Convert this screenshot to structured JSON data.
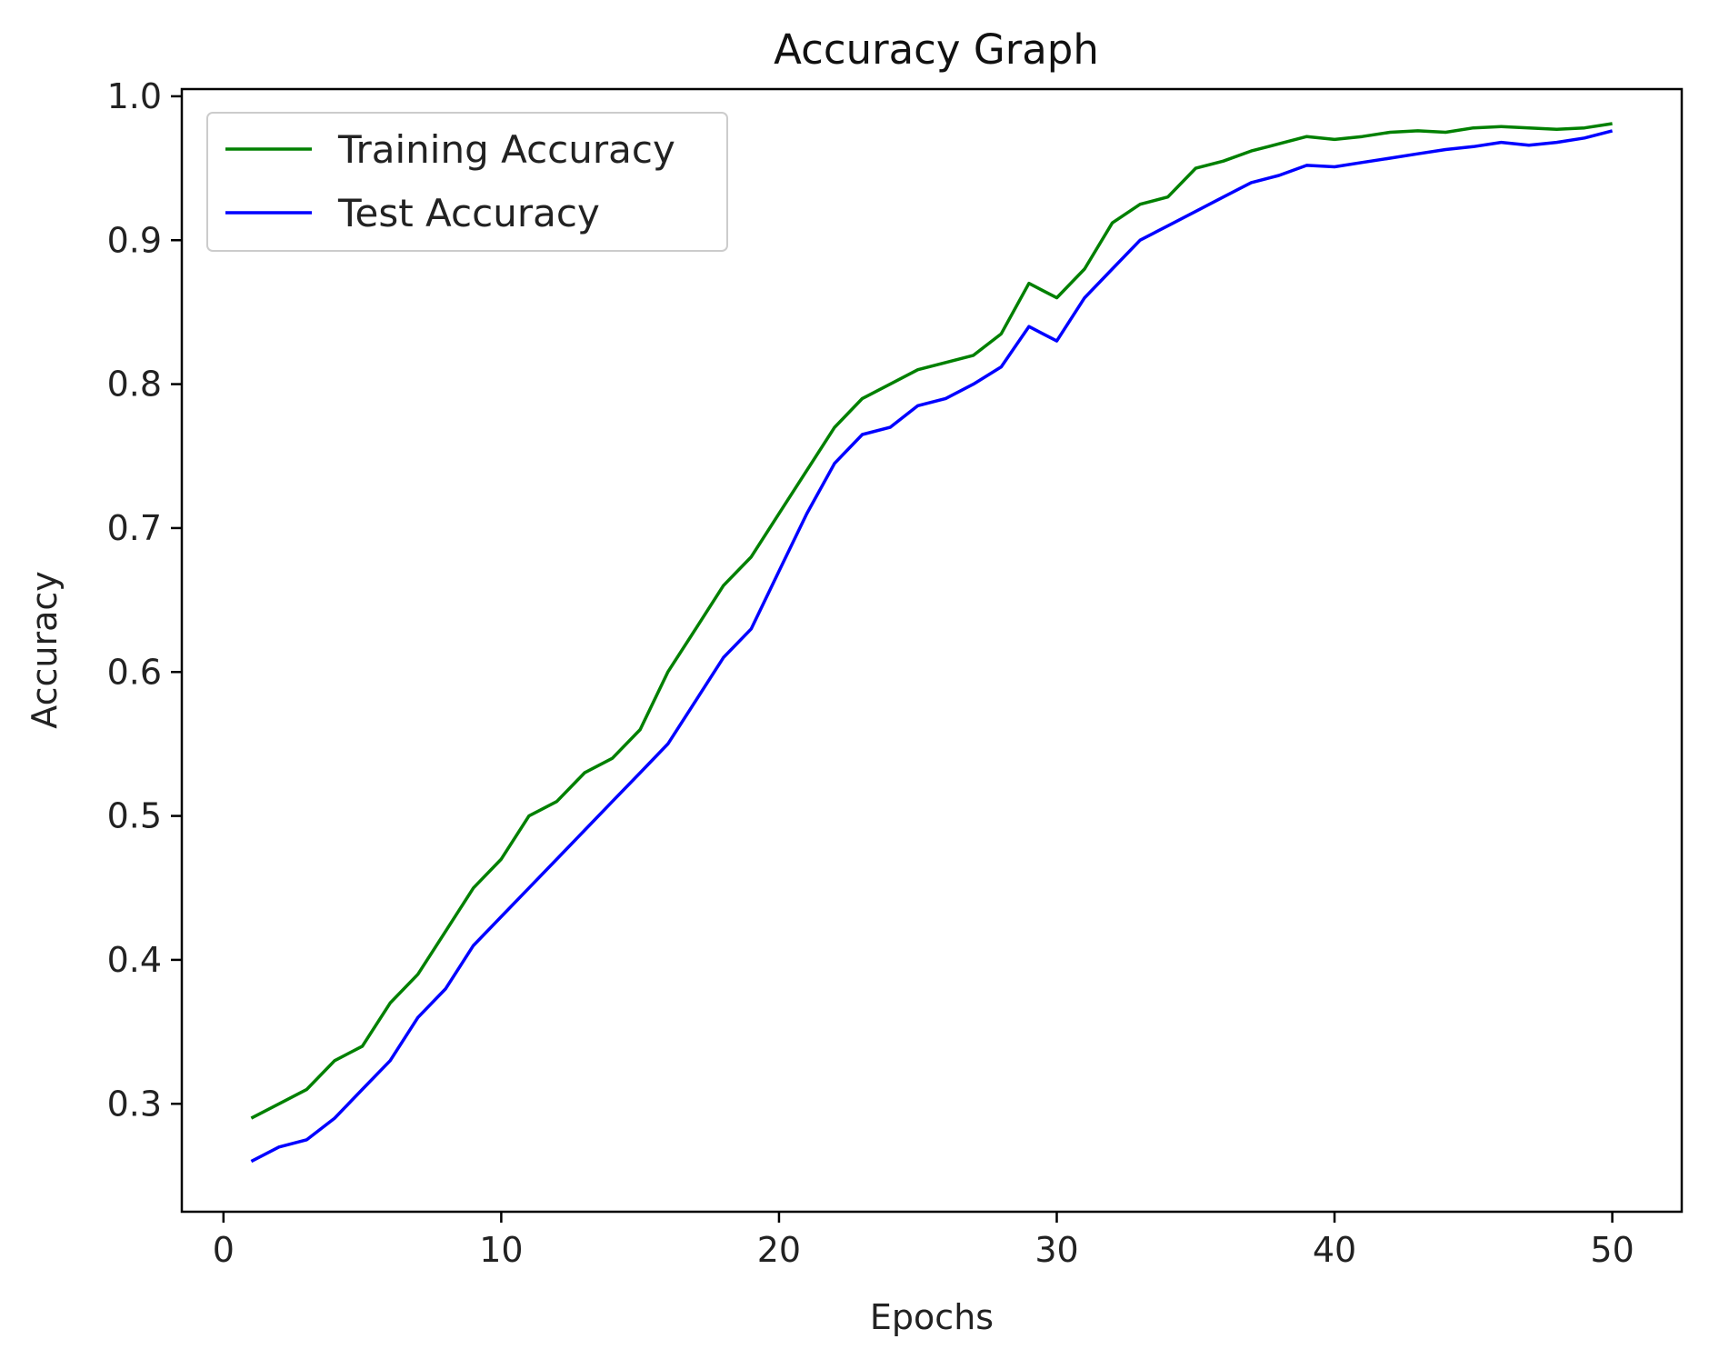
{
  "chart_data": {
    "type": "line",
    "title": "Accuracy Graph",
    "xlabel": "Epochs",
    "ylabel": "Accuracy",
    "xlim": [
      -1.5,
      52.5
    ],
    "ylim": [
      0.225,
      1.005
    ],
    "x_ticks": [
      0,
      10,
      20,
      30,
      40,
      50
    ],
    "x_tick_labels": [
      "0",
      "10",
      "20",
      "30",
      "40",
      "50"
    ],
    "y_ticks": [
      0.3,
      0.4,
      0.5,
      0.6,
      0.7,
      0.8,
      0.9,
      1.0
    ],
    "y_tick_labels": [
      "0.3",
      "0.4",
      "0.5",
      "0.6",
      "0.7",
      "0.8",
      "0.9",
      "1.0"
    ],
    "grid": false,
    "legend_position": "top-left",
    "x": [
      1,
      2,
      3,
      4,
      5,
      6,
      7,
      8,
      9,
      10,
      11,
      12,
      13,
      14,
      15,
      16,
      17,
      18,
      19,
      20,
      21,
      22,
      23,
      24,
      25,
      26,
      27,
      28,
      29,
      30,
      31,
      32,
      33,
      34,
      35,
      36,
      37,
      38,
      39,
      40,
      41,
      42,
      43,
      44,
      45,
      46,
      47,
      48,
      49,
      50
    ],
    "series": [
      {
        "name": "Training Accuracy",
        "color": "#008000",
        "values": [
          0.29,
          0.3,
          0.31,
          0.33,
          0.34,
          0.37,
          0.39,
          0.42,
          0.45,
          0.47,
          0.5,
          0.51,
          0.53,
          0.54,
          0.56,
          0.6,
          0.63,
          0.66,
          0.68,
          0.71,
          0.74,
          0.77,
          0.79,
          0.8,
          0.81,
          0.815,
          0.82,
          0.835,
          0.87,
          0.86,
          0.88,
          0.912,
          0.925,
          0.93,
          0.95,
          0.955,
          0.962,
          0.967,
          0.972,
          0.97,
          0.972,
          0.975,
          0.976,
          0.975,
          0.978,
          0.979,
          0.978,
          0.977,
          0.978,
          0.981
        ]
      },
      {
        "name": "Test Accuracy",
        "color": "#0000ff",
        "values": [
          0.26,
          0.27,
          0.275,
          0.29,
          0.31,
          0.33,
          0.36,
          0.38,
          0.41,
          0.43,
          0.45,
          0.47,
          0.49,
          0.51,
          0.53,
          0.55,
          0.58,
          0.61,
          0.63,
          0.67,
          0.71,
          0.745,
          0.765,
          0.77,
          0.785,
          0.79,
          0.8,
          0.812,
          0.84,
          0.83,
          0.86,
          0.88,
          0.9,
          0.91,
          0.92,
          0.93,
          0.94,
          0.945,
          0.952,
          0.951,
          0.954,
          0.957,
          0.96,
          0.963,
          0.965,
          0.968,
          0.966,
          0.968,
          0.971,
          0.976
        ]
      }
    ]
  }
}
